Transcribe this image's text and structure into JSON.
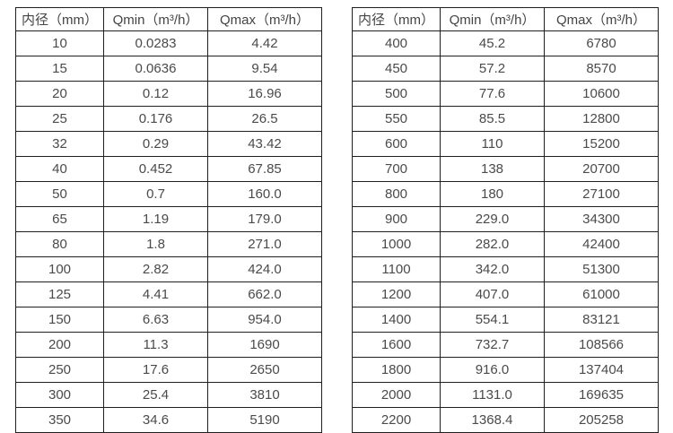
{
  "page": {
    "background_color": "#ffffff",
    "border_color": "#1f1f1f",
    "text_color": "#4a4a4a"
  },
  "tables": [
    {
      "name": "flow-table-dn10-dn350",
      "headers": [
        "内径（mm）",
        "Qmin（m³/h）",
        "Qmax（m³/h）"
      ],
      "rows": [
        [
          "10",
          "0.0283",
          "4.42"
        ],
        [
          "15",
          "0.0636",
          "9.54"
        ],
        [
          "20",
          "0.12",
          "16.96"
        ],
        [
          "25",
          "0.176",
          "26.5"
        ],
        [
          "32",
          "0.29",
          "43.42"
        ],
        [
          "40",
          "0.452",
          "67.85"
        ],
        [
          "50",
          "0.7",
          "160.0"
        ],
        [
          "65",
          "1.19",
          "179.0"
        ],
        [
          "80",
          "1.8",
          "271.0"
        ],
        [
          "100",
          "2.82",
          "424.0"
        ],
        [
          "125",
          "4.41",
          "662.0"
        ],
        [
          "150",
          "6.63",
          "954.0"
        ],
        [
          "200",
          "11.3",
          "1690"
        ],
        [
          "250",
          "17.6",
          "2650"
        ],
        [
          "300",
          "25.4",
          "3810"
        ],
        [
          "350",
          "34.6",
          "5190"
        ]
      ]
    },
    {
      "name": "flow-table-dn400-dn2200",
      "headers": [
        "内径（mm）",
        "Qmin（m³/h）",
        "Qmax（m³/h）"
      ],
      "rows": [
        [
          "400",
          "45.2",
          "6780"
        ],
        [
          "450",
          "57.2",
          "8570"
        ],
        [
          "500",
          "77.6",
          "10600"
        ],
        [
          "550",
          "85.5",
          "12800"
        ],
        [
          "600",
          "110",
          "15200"
        ],
        [
          "700",
          "138",
          "20700"
        ],
        [
          "800",
          "180",
          "27100"
        ],
        [
          "900",
          "229.0",
          "34300"
        ],
        [
          "1000",
          "282.0",
          "42400"
        ],
        [
          "1100",
          "342.0",
          "51300"
        ],
        [
          "1200",
          "407.0",
          "61000"
        ],
        [
          "1400",
          "554.1",
          "83121"
        ],
        [
          "1600",
          "732.7",
          "108566"
        ],
        [
          "1800",
          "916.0",
          "137404"
        ],
        [
          "2000",
          "1131.0",
          "169635"
        ],
        [
          "2200",
          "1368.4",
          "205258"
        ]
      ]
    }
  ]
}
